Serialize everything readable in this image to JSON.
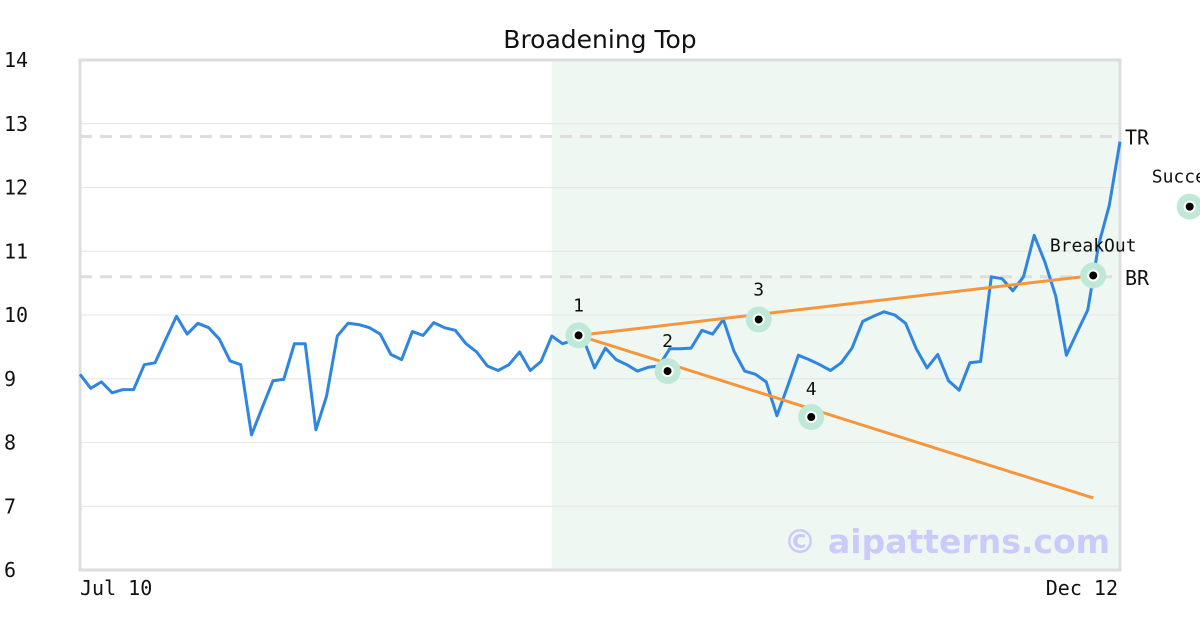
{
  "chart_data": {
    "type": "line",
    "title": "Broadening Top",
    "ylim": [
      6,
      14
    ],
    "yticks": [
      6,
      7,
      8,
      9,
      10,
      11,
      12,
      13,
      14
    ],
    "x_tick_labels": {
      "start": "Jul 10",
      "end": "Dec 12"
    },
    "series": [
      {
        "color": "#2f86e0",
        "values": [
          9.07,
          8.85,
          8.95,
          8.78,
          8.83,
          8.83,
          9.22,
          9.25,
          9.62,
          9.98,
          9.7,
          9.87,
          9.8,
          9.62,
          9.28,
          9.22,
          8.12,
          8.55,
          8.97,
          8.99,
          9.55,
          9.55,
          8.2,
          8.73,
          9.67,
          9.87,
          9.85,
          9.8,
          9.7,
          9.38,
          9.3,
          9.74,
          9.68,
          9.88,
          9.8,
          9.76,
          9.55,
          9.42,
          9.2,
          9.13,
          9.22,
          9.42,
          9.13,
          9.27,
          9.67,
          9.55,
          9.6,
          9.6,
          9.17,
          9.48,
          9.3,
          9.22,
          9.12,
          9.18,
          9.2,
          9.47,
          9.47,
          9.48,
          9.76,
          9.7,
          9.93,
          9.43,
          9.12,
          9.07,
          8.95,
          8.42,
          8.88,
          9.37,
          9.3,
          9.22,
          9.13,
          9.25,
          9.48,
          9.9,
          9.98,
          10.05,
          10.0,
          9.87,
          9.47,
          9.17,
          9.38,
          8.97,
          8.82,
          9.25,
          9.27,
          10.6,
          10.57,
          10.38,
          10.6,
          11.25,
          10.83,
          10.3,
          9.37,
          9.73,
          10.08,
          11.1,
          11.72,
          12.72
        ]
      }
    ],
    "shaded_region": {
      "from_index": 44,
      "to_index": 103,
      "color": "#eef7f2"
    },
    "levels": [
      {
        "label": "TR",
        "value": 12.8,
        "style": "dashed",
        "color": "#dddddd"
      },
      {
        "label": "BR",
        "value": 10.6,
        "style": "dashed",
        "color": "#dddddd"
      }
    ],
    "trendlines": [
      {
        "color": "#f5963c",
        "from": {
          "index": 46.5,
          "value": 9.68
        },
        "to": {
          "index": 94.5,
          "value": 10.62
        }
      },
      {
        "color": "#f5963c",
        "from": {
          "index": 46.5,
          "value": 9.68
        },
        "to": {
          "index": 94.5,
          "value": 7.13
        }
      }
    ],
    "annotations": [
      {
        "label": "1",
        "index": 46.5,
        "value": 9.68,
        "label_pos": "above"
      },
      {
        "label": "2",
        "index": 54.8,
        "value": 9.12,
        "label_pos": "above"
      },
      {
        "label": "3",
        "index": 63.3,
        "value": 9.93,
        "label_pos": "above"
      },
      {
        "label": "4",
        "index": 68.2,
        "value": 8.4,
        "label_pos": "above-close"
      },
      {
        "label": "BreakOut",
        "index": 94.5,
        "value": 10.62,
        "label_pos": "above"
      },
      {
        "label": "Success",
        "index": 103.5,
        "value": 11.7,
        "label_pos": "above"
      }
    ],
    "marker_ring_color": "#bfe9d6",
    "grid": true,
    "watermark": "© aipatterns.com"
  }
}
